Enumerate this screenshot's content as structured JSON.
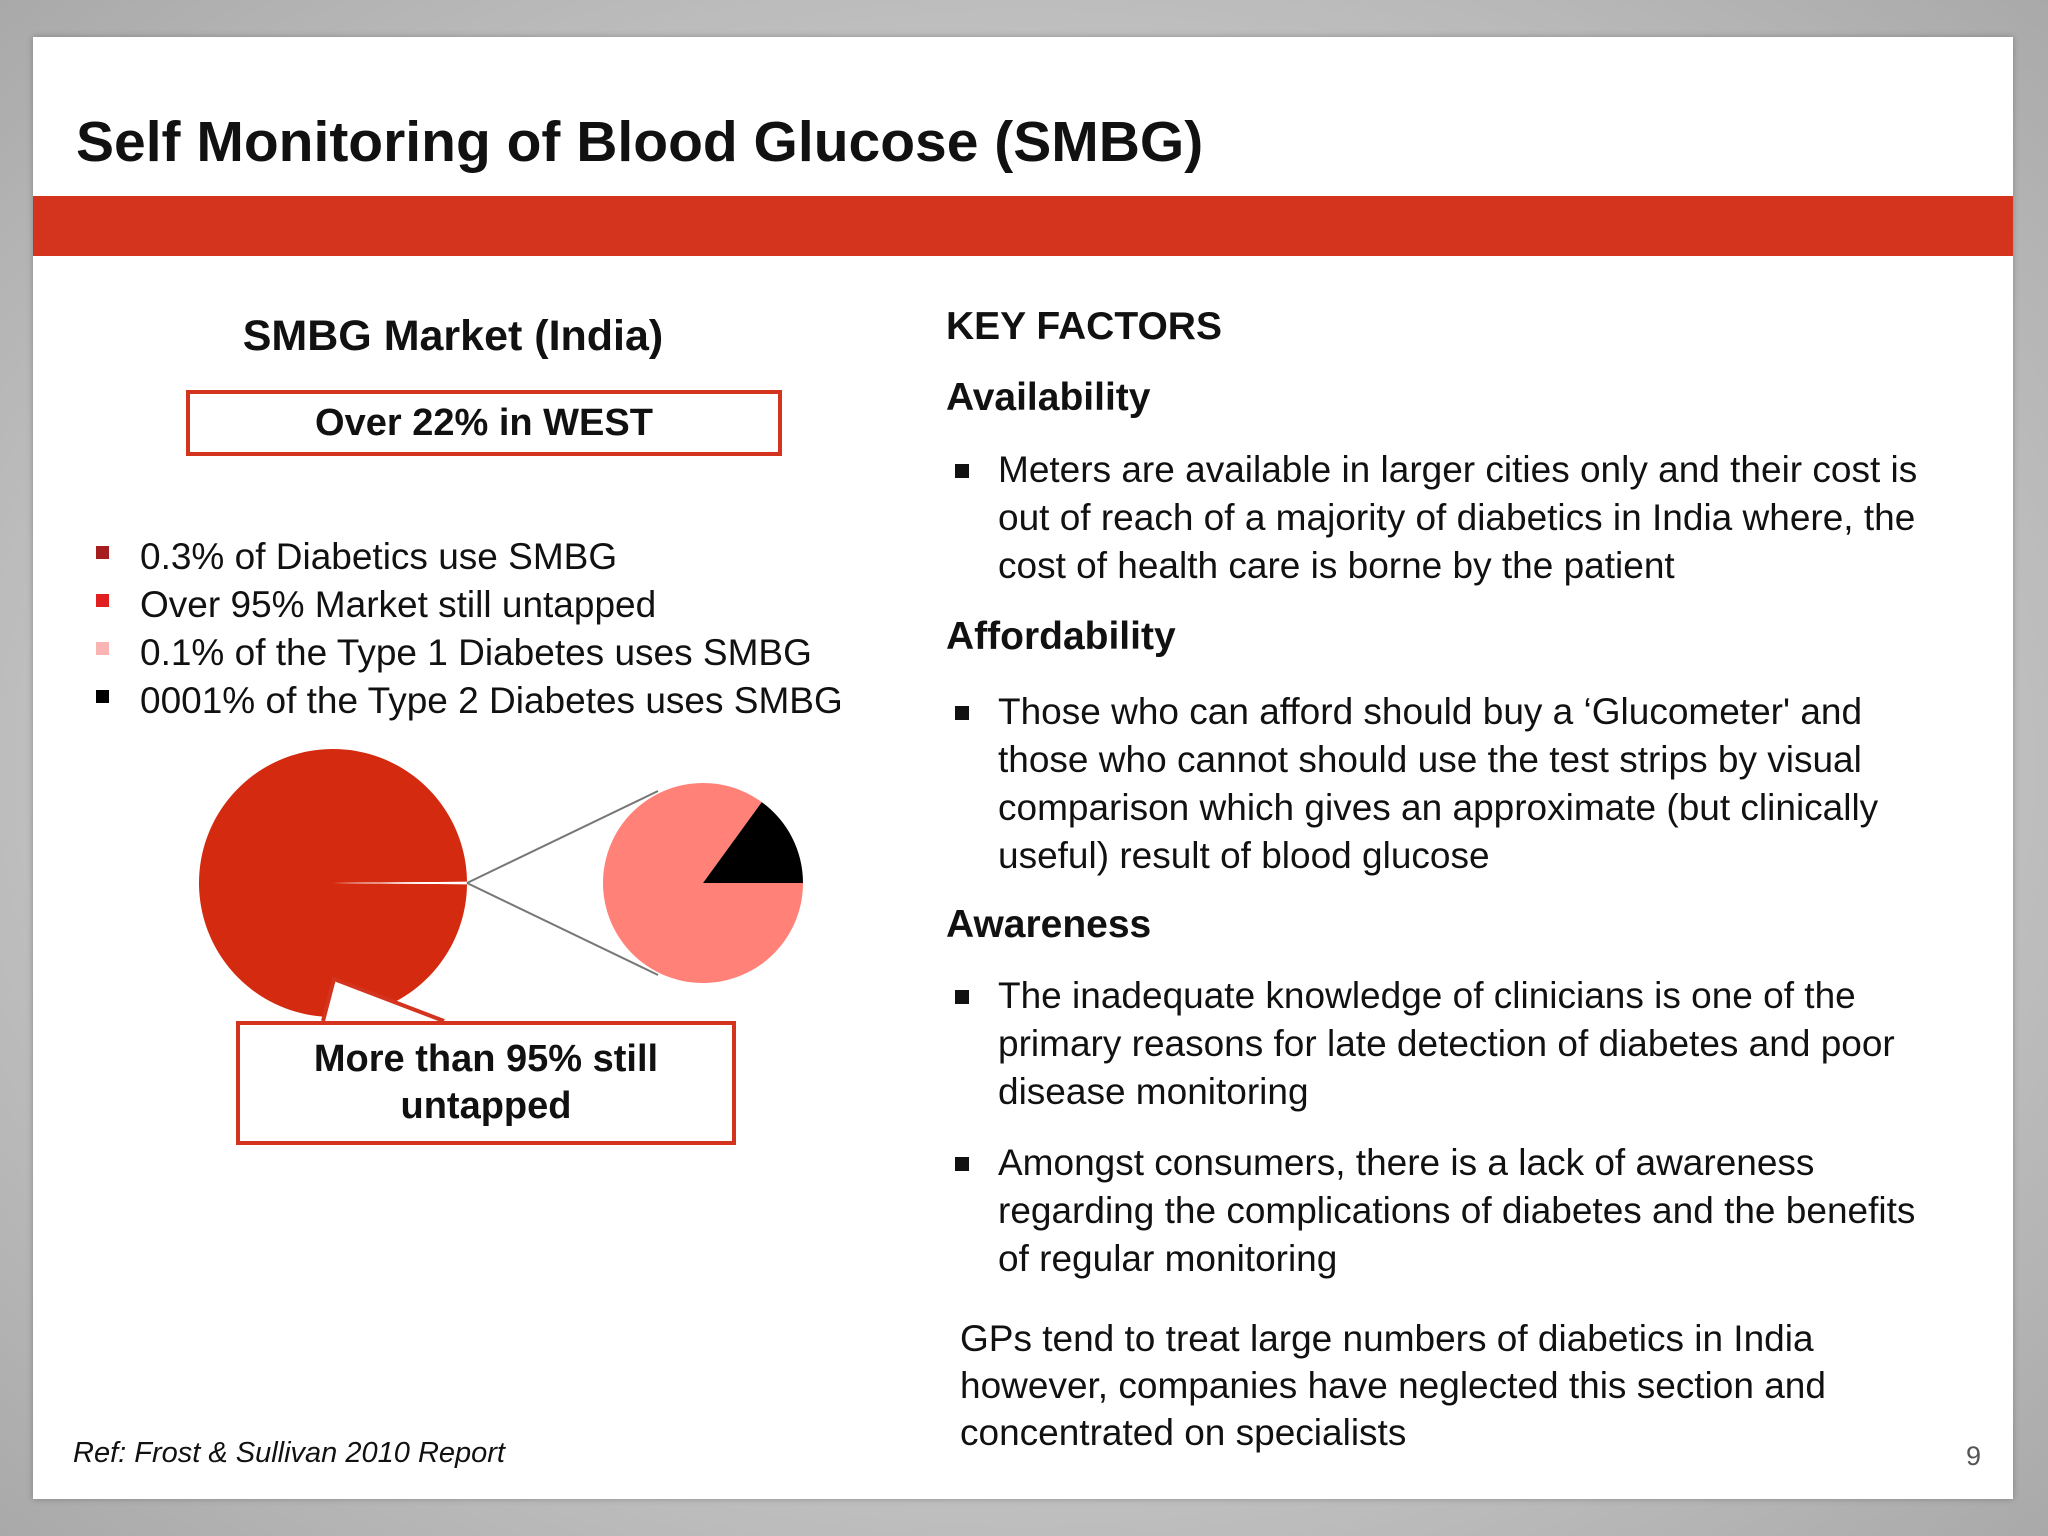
{
  "slide": {
    "title": "Self Monitoring of Blood Glucose (SMBG)",
    "colors": {
      "accent": "#d4331e",
      "pie_main": "#d42a10",
      "pie_zoom": "#ff8178",
      "pie_zoom_slice": "#000000"
    }
  },
  "market": {
    "title": "SMBG Market (India)",
    "west_label": "Over 22% in WEST",
    "bullets": [
      {
        "text": "0.3% of Diabetics use SMBG",
        "color": "#a51d1d"
      },
      {
        "text": "Over 95% Market still untapped",
        "color": "#e02020"
      },
      {
        "text": "0.1% of the Type 1 Diabetes uses SMBG",
        "color": "#f9b4b4"
      },
      {
        "text": "0001% of the Type 2 Diabetes uses SMBG",
        "color": "#000000"
      }
    ],
    "callout": "More than 95% still untapped"
  },
  "chart_data": {
    "type": "pie",
    "title": "",
    "main_pie": {
      "slices": [
        {
          "label": "Over 95% Market still untapped",
          "value": 99.7
        },
        {
          "label": "0.3% of Diabetics use SMBG",
          "value": 0.3
        }
      ]
    },
    "zoom_pie": {
      "slices": [
        {
          "label": "0.1% of the Type 1 Diabetes uses SMBG",
          "value": 85
        },
        {
          "label": "0001% of the Type 2 Diabetes uses SMBG",
          "value": 15
        }
      ]
    }
  },
  "factors": {
    "heading": "KEY FACTORS",
    "availability": {
      "heading": "Availability",
      "bullets": [
        "Meters are available in larger cities only and their cost is out of reach of a majority of diabetics in India where, the cost of health care is borne by the patient"
      ]
    },
    "affordability": {
      "heading": "Affordability",
      "bullets": [
        "Those who can afford should buy a ‘Glucometer' and those who cannot should use the test strips by visual comparison which gives an approximate (but clinically useful) result of blood glucose"
      ]
    },
    "awareness": {
      "heading": "Awareness",
      "bullets": [
        "The inadequate knowledge of clinicians is one of the primary reasons for late detection of diabetes and poor disease monitoring",
        "Amongst consumers, there is a lack of awareness regarding the complications of diabetes and the benefits of regular monitoring"
      ]
    },
    "gps_note": "GPs tend to treat large numbers of diabetics in India however, companies have neglected this section and concentrated on specialists"
  },
  "footer": {
    "reference": "Ref: Frost & Sullivan 2010 Report",
    "page_number": "9"
  }
}
